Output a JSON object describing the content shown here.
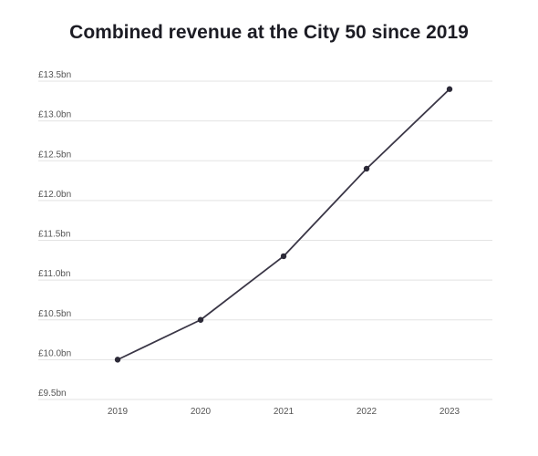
{
  "chart_data": {
    "type": "line",
    "title": "Combined revenue at the City 50 since 2019",
    "xlabel": "",
    "ylabel": "",
    "x": [
      "2019",
      "2020",
      "2021",
      "2022",
      "2023"
    ],
    "series": [
      {
        "values": [
          10.0,
          10.5,
          11.3,
          12.4,
          13.4
        ]
      }
    ],
    "ylim": [
      9.5,
      13.5
    ],
    "y_ticks": [
      9.5,
      10.0,
      10.5,
      11.0,
      11.5,
      12.0,
      12.5,
      13.0,
      13.5
    ],
    "y_tick_labels": [
      "£9.5bn",
      "£10.0bn",
      "£10.5bn",
      "£11.0bn",
      "£11.5bn",
      "£12.0bn",
      "£12.5bn",
      "£13.0bn",
      "£13.5bn"
    ],
    "grid": true,
    "colors": {
      "line": "#3a3646",
      "marker": "#2c2a38",
      "grid": "#e3e3e3",
      "tick_text": "#555555",
      "title": "#1c1c24"
    }
  }
}
